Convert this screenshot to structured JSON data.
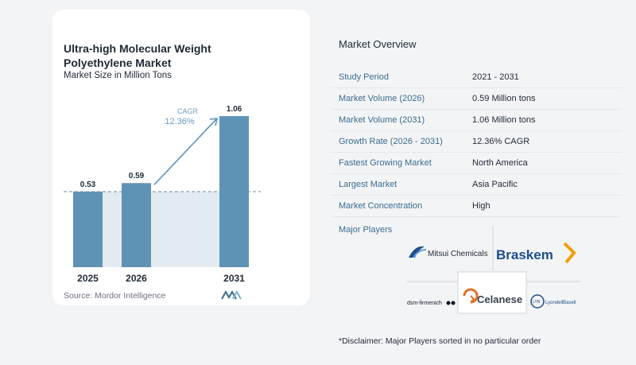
{
  "chart_data": {
    "type": "bar",
    "title": "Ultra-high Molecular Weight Polyethylene Market",
    "subtitle": "Market Size in Million Tons",
    "categories": [
      "2025",
      "2026",
      "2031"
    ],
    "values": [
      0.53,
      0.59,
      1.06
    ],
    "data_labels": [
      "0.53",
      "0.59",
      "1.06"
    ],
    "cagr_label": "CAGR",
    "cagr_value": "12.36%",
    "ylim": [
      0,
      1.06
    ],
    "grid": false,
    "bar_color": "#5f93b6",
    "reference_line_value": 0.53,
    "source": "Source:  Mordor Intelligence"
  },
  "overview": {
    "title": "Market Overview",
    "rows": [
      {
        "label": "Study Period",
        "value": "2021 - 2031"
      },
      {
        "label": "Market Volume (2026)",
        "value": "0.59 Million tons"
      },
      {
        "label": "Market Volume (2031)",
        "value": "1.06 Million tons"
      },
      {
        "label": "Growth Rate (2026 - 2031)",
        "value": "12.36% CAGR"
      },
      {
        "label": "Fastest Growing Market",
        "value": "North America"
      },
      {
        "label": "Largest Market",
        "value": "Asia Pacific"
      },
      {
        "label": "Market Concentration",
        "value": "High"
      }
    ]
  },
  "players": {
    "title": "Major Players",
    "logos": [
      {
        "name": "Mitsui Chemicals",
        "text": "Mitsui Chemicals"
      },
      {
        "name": "Braskem",
        "text": "Braskem"
      },
      {
        "name": "dsm-firmenich",
        "text": "dsm-firmenich"
      },
      {
        "name": "Celanese",
        "text": "Celanese"
      },
      {
        "name": "LyondellBasell",
        "text": "LyondellBasell"
      }
    ]
  },
  "disclaimer": "*Disclaimer: Major Players sorted in no particular order",
  "colors": {
    "accent": "#3b6c8f",
    "bar": "#5f93b6",
    "bar_dark": "#4f7fa3",
    "band": "#e3ebf2"
  }
}
